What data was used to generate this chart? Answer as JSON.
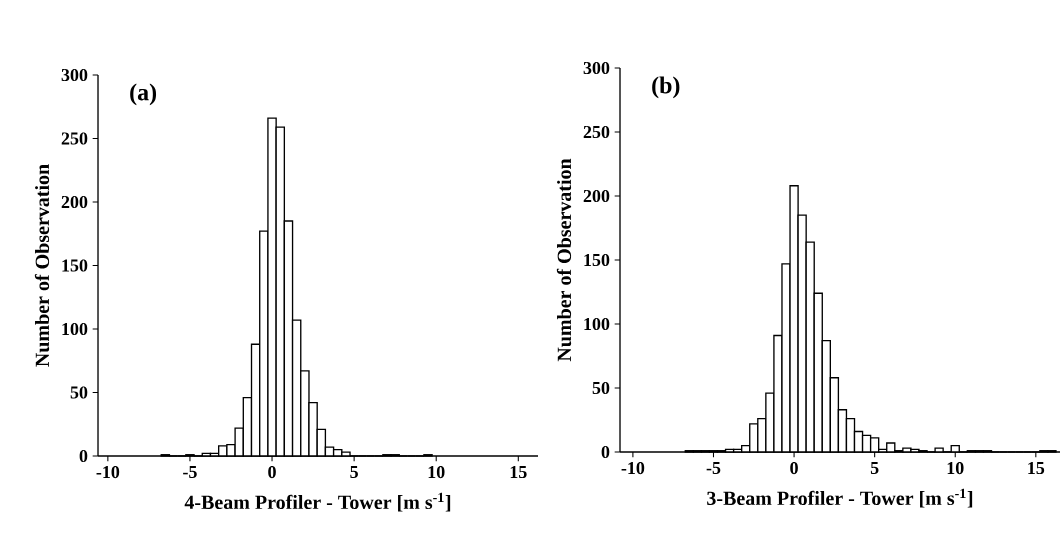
{
  "chart_data": [
    {
      "type": "histogram",
      "annotations": [
        "(a)"
      ],
      "xlabel": "4-Beam Profiler - Tower [m s$^{-1}$]",
      "ylabel": "Number of Observation",
      "color": "#ffffff",
      "bins": [
        -6.75,
        -6.25,
        -5.75,
        -5.25,
        -4.75,
        -4.25,
        -3.75,
        -3.25,
        -2.75,
        -2.25,
        -1.75,
        -1.25,
        -0.75,
        -0.25,
        0.25,
        0.75,
        1.25,
        1.75,
        2.25,
        2.75,
        3.25,
        3.75,
        4.25,
        4.75,
        5.25,
        5.75,
        6.25,
        6.75,
        7.25,
        7.75,
        8.25,
        8.75,
        9.25,
        9.75
      ],
      "values": [
        1,
        0,
        0,
        1,
        0,
        2,
        2,
        8,
        9,
        22,
        46,
        88,
        177,
        266,
        259,
        185,
        107,
        67,
        42,
        21,
        7,
        5,
        3,
        0,
        0,
        0,
        0,
        1,
        1,
        0,
        0,
        0,
        1
      ],
      "xlim": [
        -10.6,
        16.2
      ],
      "xticks": [
        -10,
        -5,
        0,
        5,
        10,
        15
      ],
      "ylim": [
        0,
        300
      ],
      "yticks": [
        0,
        50,
        100,
        150,
        200,
        250,
        300
      ]
    },
    {
      "type": "histogram",
      "annotations": [
        "(b)"
      ],
      "xlabel": "3-Beam Profiler - Tower [m s$^{-1}$]",
      "ylabel": "Number of Observation",
      "color": "#ffffff",
      "bins": [
        -6.75,
        -6.25,
        -5.75,
        -5.25,
        -4.75,
        -4.25,
        -3.75,
        -3.25,
        -2.75,
        -2.25,
        -1.75,
        -1.25,
        -0.75,
        -0.25,
        0.25,
        0.75,
        1.25,
        1.75,
        2.25,
        2.75,
        3.25,
        3.75,
        4.25,
        4.75,
        5.25,
        5.75,
        6.25,
        6.75,
        7.25,
        7.75,
        8.25,
        8.75,
        9.25,
        9.75,
        10.25,
        10.75,
        11.25,
        11.75,
        12.25,
        12.75,
        13.25,
        13.75,
        14.25,
        14.75,
        15.25,
        15.75,
        16.25
      ],
      "values": [
        1,
        1,
        1,
        1,
        1,
        2,
        2,
        5,
        22,
        26,
        46,
        91,
        147,
        208,
        185,
        164,
        124,
        87,
        58,
        33,
        26,
        16,
        13,
        11,
        2,
        7,
        1,
        3,
        2,
        1,
        0,
        3,
        0,
        5,
        0,
        1,
        1,
        1,
        0,
        0,
        0,
        0,
        0,
        0,
        1,
        1
      ],
      "xlim": [
        -10.8,
        16.5
      ],
      "xticks": [
        -10,
        -5,
        0,
        5,
        10,
        15
      ],
      "ylim": [
        0,
        300
      ],
      "yticks": [
        0,
        50,
        100,
        150,
        200,
        250,
        300
      ]
    }
  ]
}
